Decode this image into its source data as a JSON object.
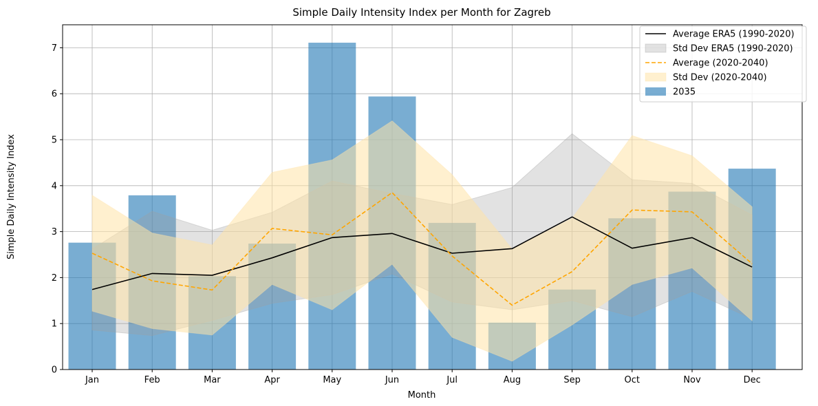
{
  "chart_data": {
    "type": "bar",
    "title": "Simple Daily Intensity Index per Month for Zagreb",
    "xlabel": "Month",
    "ylabel": "Simple Daily Intensity Index",
    "categories": [
      "Jan",
      "Feb",
      "Mar",
      "Apr",
      "May",
      "Jun",
      "Jul",
      "Aug",
      "Sep",
      "Oct",
      "Nov",
      "Dec"
    ],
    "ylim": [
      0,
      7.5
    ],
    "yticks": [
      0,
      1,
      2,
      3,
      4,
      5,
      6,
      7
    ],
    "grid": true,
    "legend_position": "top-right",
    "series": [
      {
        "name": "Average ERA5 (1990-2020)",
        "kind": "line",
        "color": "#000000",
        "values": [
          1.74,
          2.09,
          2.05,
          2.43,
          2.87,
          2.96,
          2.53,
          2.63,
          3.32,
          2.64,
          2.87,
          2.23
        ]
      },
      {
        "name": "Std Dev ERA5 (1990-2020)",
        "kind": "band",
        "color": "#a0a0a0",
        "lower": [
          0.86,
          0.74,
          1.07,
          1.44,
          1.63,
          2.08,
          1.47,
          1.3,
          1.5,
          1.15,
          1.7,
          1.1
        ],
        "upper": [
          2.62,
          3.44,
          3.03,
          3.42,
          4.1,
          3.83,
          3.59,
          3.96,
          5.13,
          4.13,
          4.05,
          3.36
        ]
      },
      {
        "name": "Average (2020-2040)",
        "kind": "dashed-line",
        "color": "#ffa500",
        "values": [
          2.53,
          1.93,
          1.73,
          3.07,
          2.93,
          3.85,
          2.47,
          1.4,
          2.13,
          3.47,
          3.43,
          2.3
        ]
      },
      {
        "name": "Std Dev (2020-2040)",
        "kind": "band",
        "color": "#ffe3a8",
        "lower": [
          1.27,
          0.89,
          0.75,
          1.85,
          1.3,
          2.29,
          0.7,
          0.18,
          0.97,
          1.85,
          2.21,
          1.06
        ],
        "upper": [
          3.79,
          2.97,
          2.71,
          4.29,
          4.56,
          5.41,
          4.24,
          2.62,
          3.29,
          5.09,
          4.65,
          3.54
        ]
      },
      {
        "name": "2035",
        "kind": "bar",
        "color": "#1f77b4",
        "values": [
          2.76,
          3.79,
          2.03,
          2.74,
          7.11,
          5.94,
          3.19,
          1.02,
          1.74,
          3.29,
          3.87,
          4.37
        ]
      }
    ]
  }
}
